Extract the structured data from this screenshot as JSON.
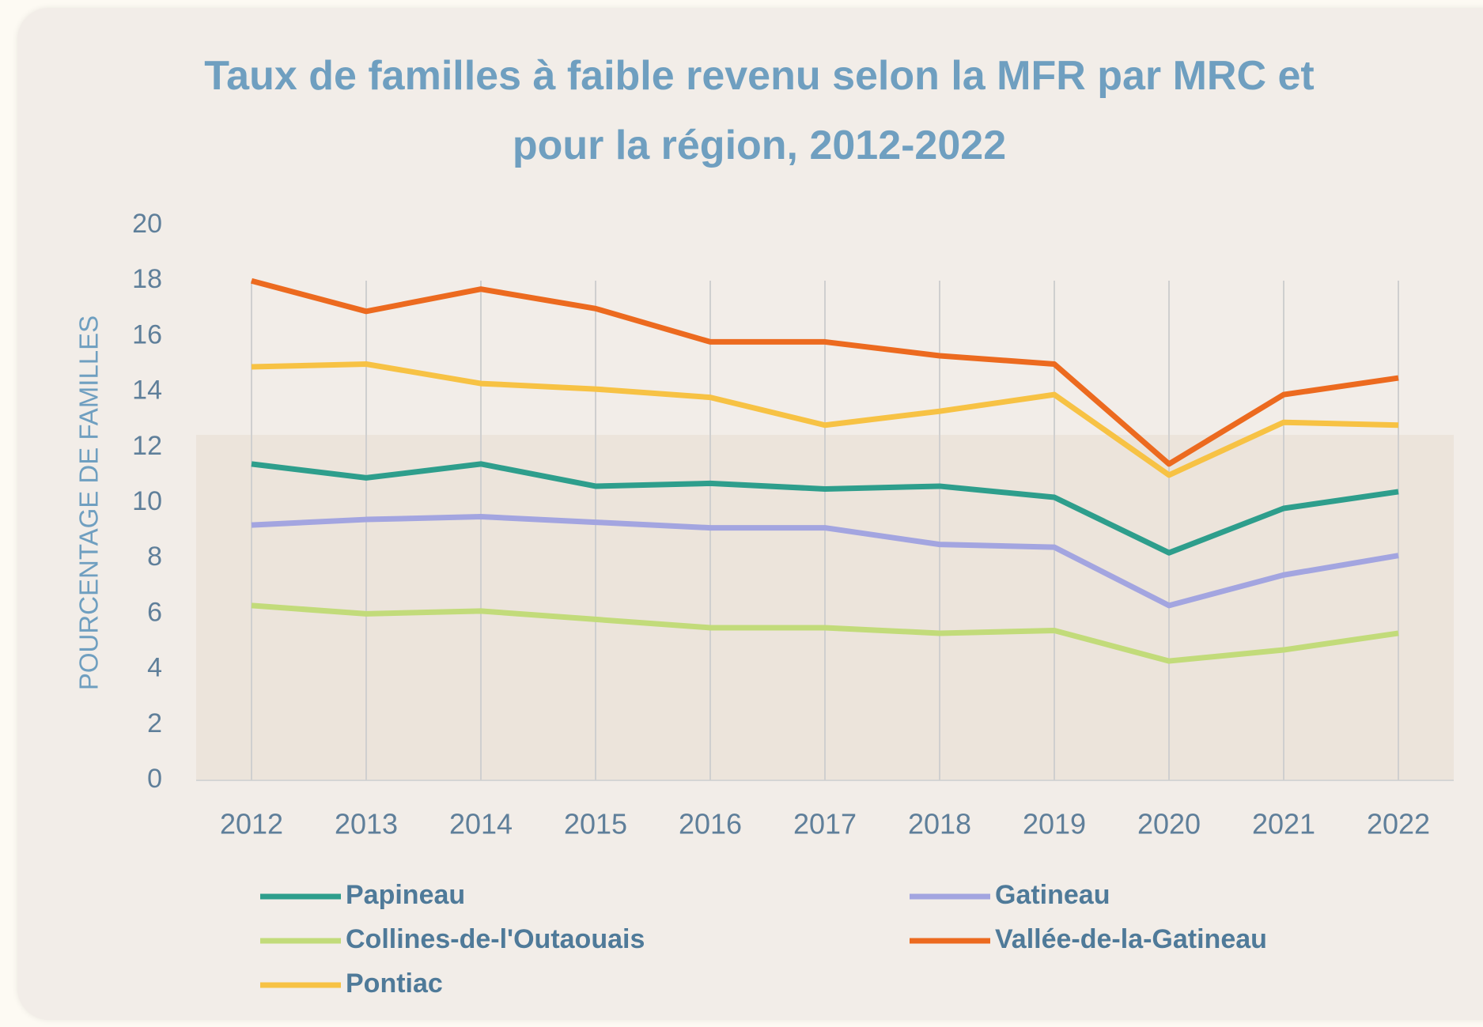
{
  "chart_data": {
    "type": "line",
    "title": "Taux de familles à faible revenu selon la MFR par MRC et pour la région, 2012-2022",
    "y_label": "POURCENTAGE DE FAMILLES",
    "categories": [
      "2012",
      "2013",
      "2014",
      "2015",
      "2016",
      "2017",
      "2018",
      "2019",
      "2020",
      "2021",
      "2022"
    ],
    "series": [
      {
        "name": "Papineau",
        "color": "#2e9e8c",
        "values": [
          11.4,
          10.9,
          11.4,
          10.6,
          10.7,
          10.5,
          10.6,
          10.2,
          8.2,
          9.8,
          10.4
        ]
      },
      {
        "name": "Gatineau",
        "color": "#a3a5e0",
        "values": [
          9.2,
          9.4,
          9.5,
          9.3,
          9.1,
          9.1,
          8.5,
          8.4,
          6.3,
          7.4,
          8.1
        ]
      },
      {
        "name": "Collines-de-l'Outaouais",
        "color": "#c2db7a",
        "values": [
          6.3,
          6.0,
          6.1,
          5.8,
          5.5,
          5.5,
          5.3,
          5.4,
          4.3,
          4.7,
          5.3
        ]
      },
      {
        "name": "Vallée-de-la-Gatineau",
        "color": "#ec6a1f",
        "values": [
          18.0,
          16.9,
          17.7,
          17.0,
          15.8,
          15.8,
          15.3,
          15.0,
          11.4,
          13.9,
          14.5
        ]
      },
      {
        "name": "Pontiac",
        "color": "#f7c244",
        "values": [
          14.9,
          15.0,
          14.3,
          14.1,
          13.8,
          12.8,
          13.3,
          13.9,
          11.0,
          12.9,
          12.8
        ]
      }
    ],
    "ylim": [
      0,
      20
    ],
    "yticks": [
      0,
      2,
      4,
      6,
      8,
      10,
      12,
      14,
      16,
      18,
      20
    ],
    "grid": true
  }
}
